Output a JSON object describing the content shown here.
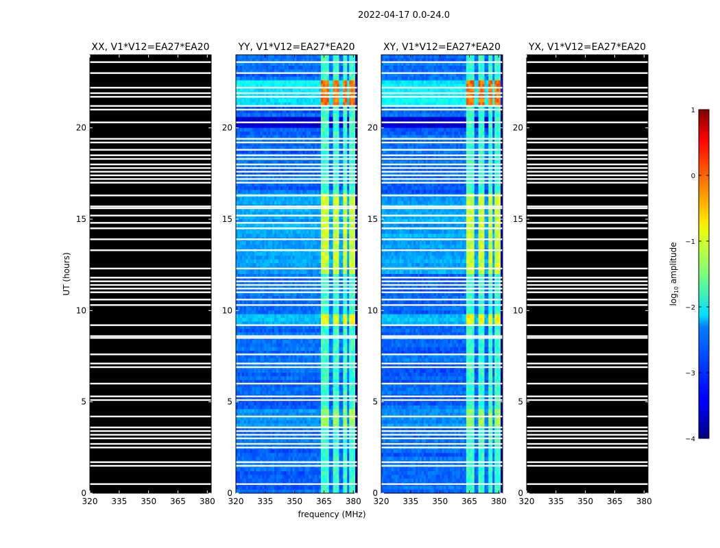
{
  "figure": {
    "suptitle": "2022-04-17 0.0-24.0"
  },
  "chart_data": {
    "type": "heatmap",
    "xlabel": "frequency (MHz)",
    "ylabel": "UT (hours)",
    "xlim": [
      320,
      382
    ],
    "ylim": [
      0,
      24
    ],
    "x_ticks": [
      320,
      335,
      350,
      365,
      380
    ],
    "y_ticks": [
      0,
      5,
      10,
      15,
      20
    ],
    "panels": [
      {
        "title": "XX, V1*V12=EA27*EA20",
        "data_present": false
      },
      {
        "title": "YY, V1*V12=EA27*EA20",
        "data_present": true
      },
      {
        "title": "XY, V1*V12=EA27*EA20",
        "data_present": true
      },
      {
        "title": "YX, V1*V12=EA27*EA20",
        "data_present": false
      }
    ],
    "flagged_hours": [
      0.5,
      1.5,
      1.7,
      2.5,
      2.7,
      3.0,
      3.2,
      3.4,
      3.6,
      4.2,
      5.1,
      5.3,
      6.0,
      6.9,
      7.1,
      7.6,
      8.5,
      8.6,
      9.2,
      10.3,
      10.6,
      11.0,
      11.2,
      11.4,
      11.6,
      11.8,
      12.3,
      13.3,
      13.9,
      14.5,
      14.8,
      15.2,
      15.6,
      15.7,
      16.3,
      17.0,
      17.2,
      17.4,
      17.6,
      17.8,
      18.0,
      18.3,
      18.5,
      18.8,
      19.2,
      19.4,
      20.3,
      21.0,
      21.2,
      21.7,
      21.9,
      22.2,
      23.0,
      23.6
    ],
    "rfi_bands_mhz": [
      [
        363.5,
        367.5
      ],
      [
        369.5,
        372.5
      ],
      [
        374.5,
        377.0
      ],
      [
        378.0,
        380.5
      ]
    ],
    "colorbar": {
      "label": "log10 amplitude",
      "label_main": "log",
      "label_sub": "10",
      "label_rest": " amplitude",
      "min": -4,
      "max": 1,
      "ticks": [
        -4,
        -3,
        -2,
        -1,
        0,
        1
      ],
      "colormap": "jet"
    }
  }
}
